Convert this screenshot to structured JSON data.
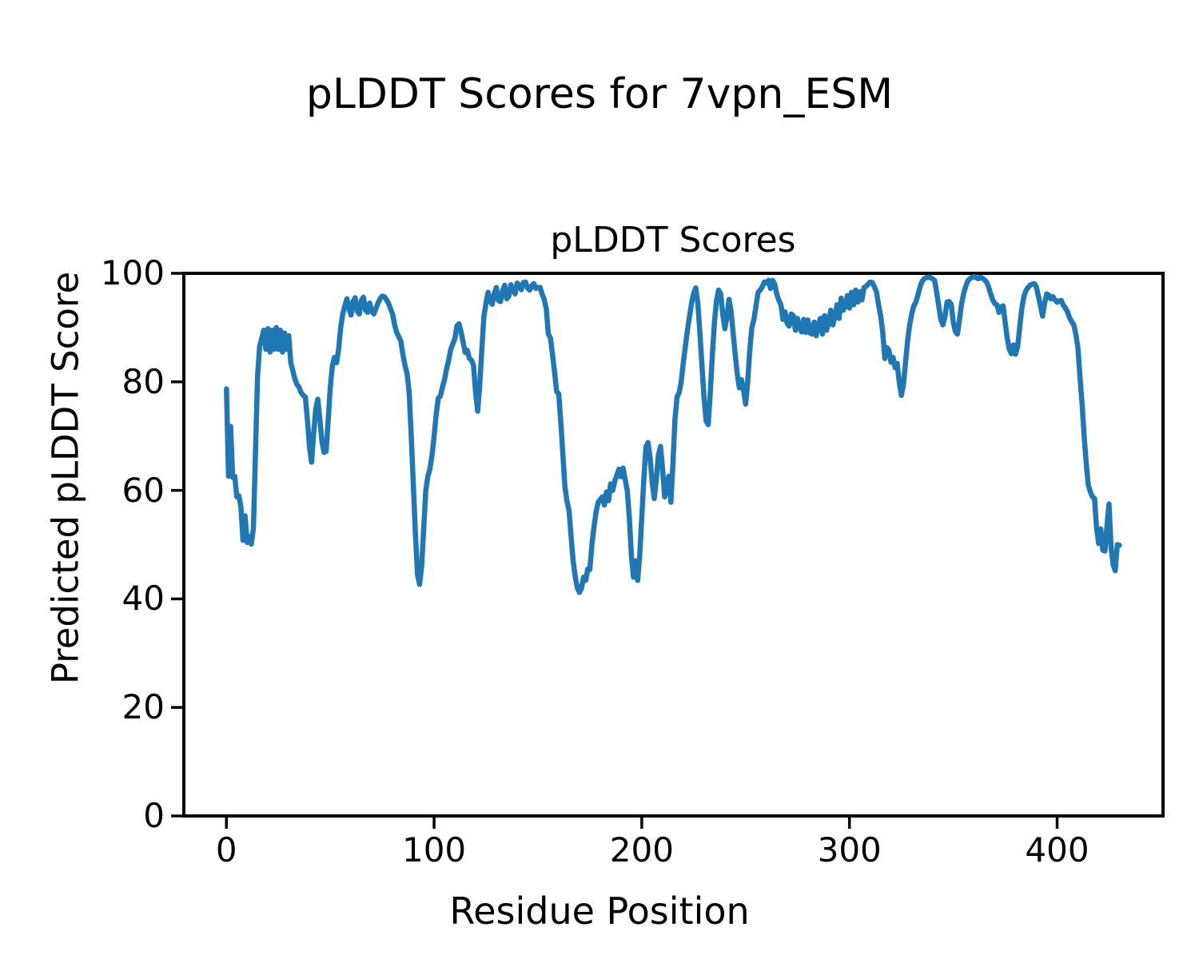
{
  "figure": {
    "suptitle": "pLDDT Scores for 7vpn_ESM",
    "background": "#ffffff"
  },
  "chart_data": {
    "type": "line",
    "title": "pLDDT Scores",
    "xlabel": "Residue Position",
    "ylabel": "Predicted pLDDT Score",
    "xlim": [
      -20.5,
      451
    ],
    "ylim": [
      0,
      100
    ],
    "xticks": [
      0,
      100,
      200,
      300,
      400
    ],
    "yticks": [
      0,
      20,
      40,
      60,
      80,
      100
    ],
    "grid": false,
    "legend": null,
    "axis_color": "#000000",
    "series": [
      {
        "name": "pLDDT",
        "color": "#1f77b4",
        "x_start": 0,
        "x_step": 1,
        "values": [
          78.7,
          62.6,
          71.8,
          62.4,
          62.6,
          58.8,
          59.0,
          57.0,
          50.8,
          55.3,
          50.4,
          51.5,
          50.1,
          53.0,
          67.0,
          81.0,
          86.5,
          88.0,
          89.5,
          86.0,
          89.8,
          85.5,
          89.5,
          86.0,
          90.0,
          86.0,
          89.5,
          85.5,
          89.0,
          86.0,
          88.5,
          83.5,
          82.0,
          80.5,
          79.5,
          79.0,
          78.0,
          77.5,
          77.2,
          73.0,
          68.0,
          65.2,
          70.5,
          75.0,
          76.8,
          73.0,
          69.0,
          67.0,
          67.2,
          73.0,
          79.0,
          83.0,
          84.5,
          83.5,
          86.0,
          90.0,
          92.5,
          94.0,
          95.3,
          93.5,
          92.3,
          94.8,
          95.5,
          93.0,
          92.5,
          95.0,
          95.6,
          93.2,
          92.8,
          94.5,
          93.0,
          92.5,
          93.5,
          94.5,
          95.3,
          95.8,
          95.7,
          95.2,
          94.5,
          93.5,
          92.5,
          90.5,
          89.1,
          88.3,
          87.5,
          85.0,
          83.0,
          81.5,
          78.0,
          70.0,
          61.0,
          52.0,
          44.5,
          42.7,
          46.0,
          53.0,
          60.0,
          62.6,
          64.0,
          66.5,
          70.0,
          74.0,
          77.0,
          77.4,
          79.0,
          80.4,
          82.4,
          84.0,
          86.0,
          87.0,
          88.0,
          90.3,
          90.7,
          89.2,
          87.3,
          85.4,
          85.8,
          84.3,
          84.0,
          83.0,
          78.0,
          74.6,
          79.5,
          86.0,
          92.0,
          94.5,
          96.5,
          94.8,
          94.3,
          96.3,
          97.4,
          95.0,
          94.8,
          96.8,
          97.8,
          95.3,
          95.8,
          97.9,
          96.9,
          96.2,
          98.2,
          97.8,
          97.0,
          98.3,
          98.4,
          97.3,
          96.9,
          97.7,
          98.1,
          97.2,
          97.4,
          97.4,
          96.2,
          95.2,
          93.5,
          88.8,
          88.1,
          85.0,
          81.8,
          78.2,
          77.8,
          72.5,
          66.6,
          60.7,
          58.0,
          56.3,
          51.4,
          46.9,
          44.0,
          42.0,
          41.2,
          42.0,
          44.0,
          43.4,
          45.5,
          45.4,
          50.0,
          53.3,
          56.0,
          57.8,
          58.3,
          58.8,
          57.3,
          59.7,
          58.1,
          61.2,
          60.0,
          61.7,
          62.8,
          63.9,
          62.5,
          64.1,
          62.0,
          60.0,
          55.0,
          48.0,
          44.0,
          47.0,
          43.4,
          48.0,
          55.0,
          62.2,
          68.0,
          68.8,
          66.0,
          61.5,
          58.5,
          62.0,
          66.5,
          68.1,
          64.0,
          58.8,
          60.5,
          62.6,
          57.8,
          65.0,
          73.0,
          77.2,
          78.0,
          80.0,
          83.5,
          86.5,
          89.5,
          92.0,
          94.5,
          96.3,
          97.3,
          94.5,
          89.0,
          83.0,
          77.0,
          72.8,
          72.1,
          78.0,
          85.0,
          91.0,
          95.0,
          96.9,
          96.2,
          92.5,
          89.8,
          92.0,
          95.2,
          93.0,
          89.0,
          85.0,
          81.4,
          78.9,
          80.4,
          78.5,
          75.9,
          80.0,
          85.8,
          90.0,
          91.5,
          94.0,
          96.5,
          96.9,
          97.5,
          98.4,
          98.2,
          98.7,
          97.2,
          98.7,
          98.0,
          96.2,
          95.0,
          94.2,
          91.5,
          92.9,
          90.8,
          90.3,
          92.5,
          92.2,
          89.5,
          91.7,
          90.0,
          89.2,
          91.5,
          89.1,
          91.4,
          89.0,
          88.8,
          91.0,
          88.5,
          90.5,
          91.7,
          88.8,
          92.2,
          89.5,
          91.0,
          93.2,
          90.5,
          92.0,
          94.2,
          91.7,
          95.4,
          93.2,
          94.0,
          95.9,
          93.6,
          96.5,
          94.2,
          96.9,
          94.7,
          96.6,
          95.1,
          97.4,
          97.6,
          98.0,
          98.4,
          98.3,
          97.5,
          96.6,
          94.2,
          92.2,
          89.2,
          84.3,
          86.3,
          85.8,
          83.6,
          84.5,
          82.6,
          83.4,
          79.9,
          77.5,
          79.5,
          83.5,
          87.5,
          90.5,
          92.5,
          94.0,
          94.7,
          96.0,
          97.5,
          98.5,
          99.0,
          99.2,
          99.3,
          99.2,
          99.0,
          98.7,
          96.5,
          94.0,
          91.5,
          90.5,
          92.0,
          94.7,
          94.8,
          94.3,
          91.0,
          89.3,
          88.8,
          91.5,
          94.4,
          96.3,
          97.6,
          98.6,
          99.0,
          99.3,
          99.4,
          99.2,
          99.0,
          99.3,
          99.1,
          98.8,
          98.4,
          97.5,
          96.2,
          95.1,
          94.4,
          94.2,
          92.8,
          93.8,
          94.0,
          91.0,
          88.0,
          86.0,
          85.2,
          86.8,
          85.1,
          86.5,
          90.0,
          93.5,
          95.7,
          96.8,
          97.4,
          97.8,
          98.0,
          98.1,
          97.5,
          95.8,
          94.0,
          92.1,
          94.5,
          96.2,
          96.0,
          95.3,
          95.7,
          95.1,
          94.7,
          94.9,
          95.0,
          94.1,
          93.6,
          92.9,
          91.8,
          91.1,
          90.5,
          88.8,
          86.3,
          80.9,
          76.0,
          70.0,
          65.0,
          61.0,
          59.7,
          58.8,
          58.5,
          53.0,
          50.2,
          52.9,
          49.0,
          48.8,
          53.5,
          57.5,
          49.5,
          46.3,
          45.2,
          50.0,
          49.9
        ]
      }
    ]
  }
}
